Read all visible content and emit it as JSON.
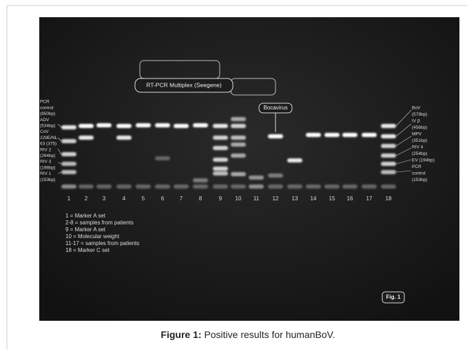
{
  "figure": {
    "gel_title": "RT-PCR Multiplex (Seegene)",
    "callout": "Bocavirus",
    "left_labels": [
      "PCR",
      "control",
      "(850bp)",
      "ADV",
      "(534bp)",
      "CoV",
      "229E/NL",
      "63 (375)",
      "RIV 2",
      "(264bp)",
      "RIV 3",
      "(198bp)",
      "RIV 1",
      "(153bp)"
    ],
    "right_labels": [
      "BoV",
      "(579bp)",
      "IV β",
      "(456bp)",
      "MPV",
      "(351bp)",
      "RIV 4",
      "(254bp)",
      "EV (194bp)",
      "PCR",
      "control",
      "(153bp)"
    ],
    "lane_numbers": [
      "1",
      "2",
      "3",
      "4",
      "5",
      "6",
      "7",
      "8",
      "9",
      "10",
      "11",
      "12",
      "13",
      "14",
      "15",
      "16",
      "17",
      "18"
    ],
    "legend": [
      "1 = Marker A set",
      "2-8 = samples from patients",
      "9 = Marker A set",
      "10 = Molecular weight",
      "11-17 = samples from patients",
      "18 = Marker C set"
    ],
    "fig_tag": "Fig. 1"
  },
  "caption": {
    "label": "Figure 1:",
    "text": "Positive results for humanBoV."
  }
}
